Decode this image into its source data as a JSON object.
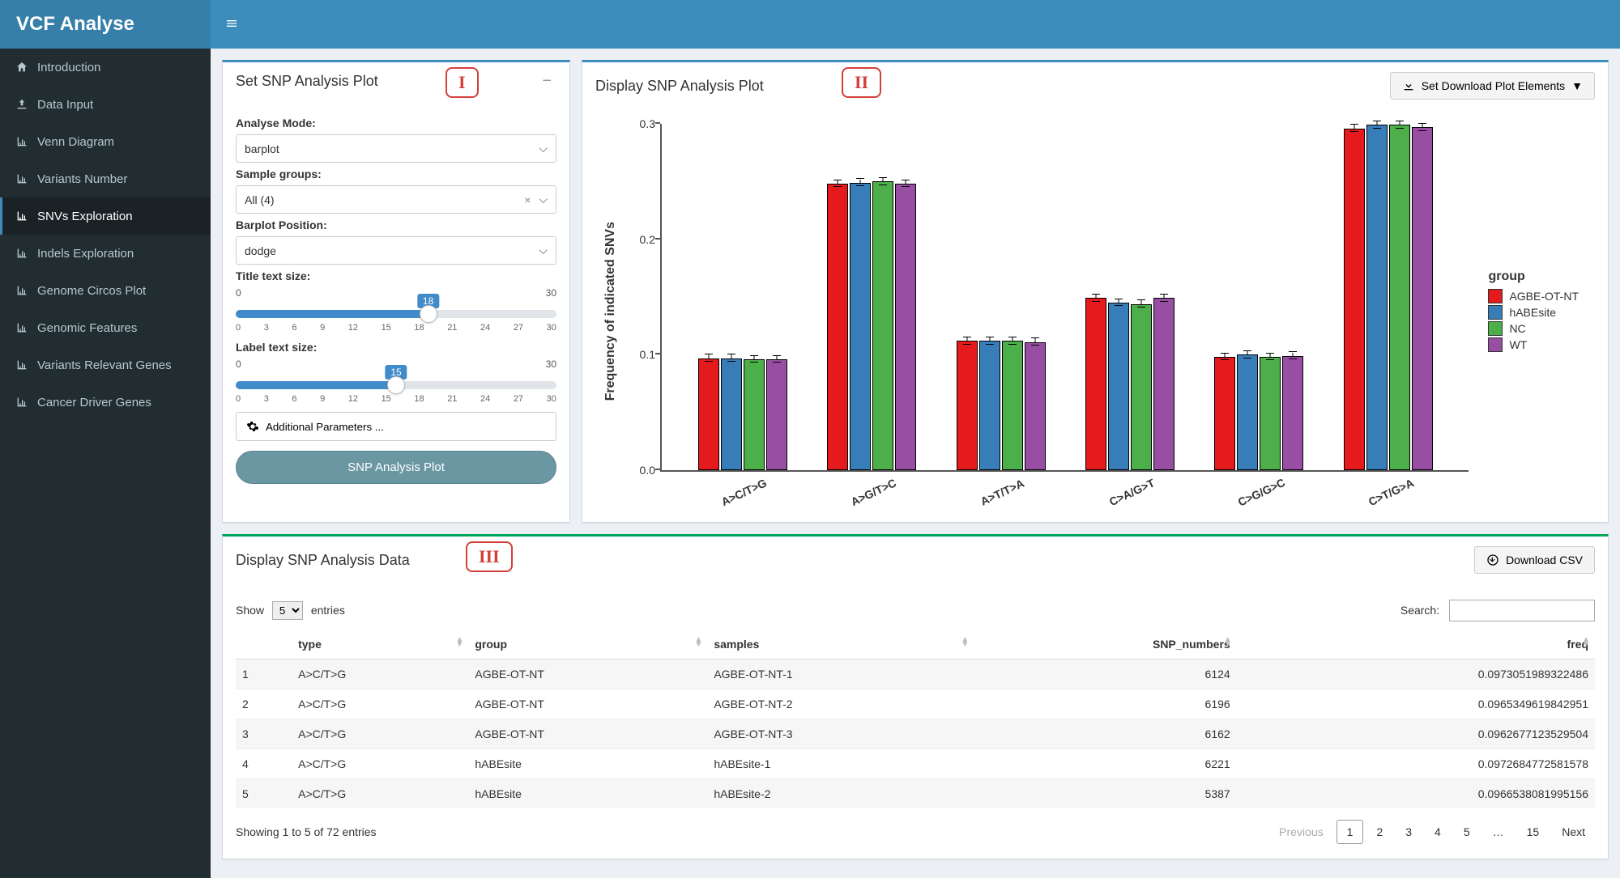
{
  "brand": "VCF Analyse",
  "sidebar": {
    "items": [
      {
        "label": "Introduction",
        "icon": "home"
      },
      {
        "label": "Data Input",
        "icon": "upload"
      },
      {
        "label": "Venn Diagram",
        "icon": "chart"
      },
      {
        "label": "Variants Number",
        "icon": "chart"
      },
      {
        "label": "SNVs Exploration",
        "icon": "chart",
        "active": true
      },
      {
        "label": "Indels Exploration",
        "icon": "chart"
      },
      {
        "label": "Genome Circos Plot",
        "icon": "chart"
      },
      {
        "label": "Genomic Features",
        "icon": "chart"
      },
      {
        "label": "Variants Relevant Genes",
        "icon": "chart"
      },
      {
        "label": "Cancer Driver Genes",
        "icon": "chart"
      }
    ]
  },
  "panels": {
    "set": {
      "title": "Set SNP Analysis Plot",
      "roman": "I"
    },
    "display_plot": {
      "title": "Display SNP Analysis Plot",
      "roman": "II",
      "download_btn": "Set Download Plot Elements"
    },
    "display_data": {
      "title": "Display SNP Analysis Data",
      "roman": "III",
      "download_btn": "Download CSV"
    }
  },
  "form": {
    "analyse_mode": {
      "label": "Analyse Mode:",
      "value": "barplot"
    },
    "sample_groups": {
      "label": "Sample groups:",
      "value": "All (4)"
    },
    "barplot_position": {
      "label": "Barplot Position:",
      "value": "dodge"
    },
    "title_size": {
      "label": "Title text size:",
      "min": 0,
      "max": 30,
      "value": 18,
      "ticks": [
        0,
        3,
        6,
        9,
        12,
        15,
        18,
        21,
        24,
        27,
        30
      ]
    },
    "label_size": {
      "label": "Label text size:",
      "min": 0,
      "max": 30,
      "value": 15,
      "ticks": [
        0,
        3,
        6,
        9,
        12,
        15,
        18,
        21,
        24,
        27,
        30
      ]
    },
    "additional": "Additional Parameters ...",
    "submit": "SNP Analysis Plot",
    "slider_fill_color": "#428bca"
  },
  "chart": {
    "type": "bar",
    "y_label": "Frequency of indicated SNVs",
    "ylim": [
      0.0,
      0.3
    ],
    "y_ticks": [
      0.0,
      0.1,
      0.2,
      0.3
    ],
    "categories": [
      "A>C/T>G",
      "A>G/T>C",
      "A>T/T>A",
      "C>A/G>T",
      "C>G/G>C",
      "C>T/G>A"
    ],
    "groups": [
      "AGBE-OT-NT",
      "hABEsite",
      "NC",
      "WT"
    ],
    "colors": {
      "AGBE-OT-NT": "#e41a1c",
      "hABEsite": "#377eb8",
      "NC": "#4daf4a",
      "WT": "#984ea3"
    },
    "values": {
      "A>C/T>G": [
        0.097,
        0.097,
        0.096,
        0.096
      ],
      "A>G/T>C": [
        0.248,
        0.249,
        0.25,
        0.248
      ],
      "A>T/T>A": [
        0.112,
        0.112,
        0.112,
        0.111
      ],
      "C>A/G>T": [
        0.149,
        0.145,
        0.144,
        0.149
      ],
      "C>G/G>C": [
        0.098,
        0.1,
        0.098,
        0.099
      ],
      "C>T/G>A": [
        0.296,
        0.299,
        0.299,
        0.297
      ]
    },
    "error": 0.003,
    "bar_border": "#000000",
    "legend_title": "group"
  },
  "table": {
    "show_label_pre": "Show",
    "show_label_post": "entries",
    "show_value": "5",
    "search_label": "Search:",
    "columns": [
      "",
      "type",
      "group",
      "samples",
      "SNP_numbers",
      "freq"
    ],
    "align": [
      "left",
      "left",
      "left",
      "left",
      "right",
      "right"
    ],
    "rows": [
      [
        "1",
        "A>C/T>G",
        "AGBE-OT-NT",
        "AGBE-OT-NT-1",
        "6124",
        "0.0973051989322486"
      ],
      [
        "2",
        "A>C/T>G",
        "AGBE-OT-NT",
        "AGBE-OT-NT-2",
        "6196",
        "0.0965349619842951"
      ],
      [
        "3",
        "A>C/T>G",
        "AGBE-OT-NT",
        "AGBE-OT-NT-3",
        "6162",
        "0.0962677123529504"
      ],
      [
        "4",
        "A>C/T>G",
        "hABEsite",
        "hABEsite-1",
        "6221",
        "0.0972684772581578"
      ],
      [
        "5",
        "A>C/T>G",
        "hABEsite",
        "hABEsite-2",
        "5387",
        "0.0966538081995156"
      ]
    ],
    "info": "Showing 1 to 5 of 72 entries",
    "pager": {
      "prev": "Previous",
      "next": "Next",
      "pages": [
        "1",
        "2",
        "3",
        "4",
        "5",
        "…",
        "15"
      ],
      "active": "1"
    }
  }
}
